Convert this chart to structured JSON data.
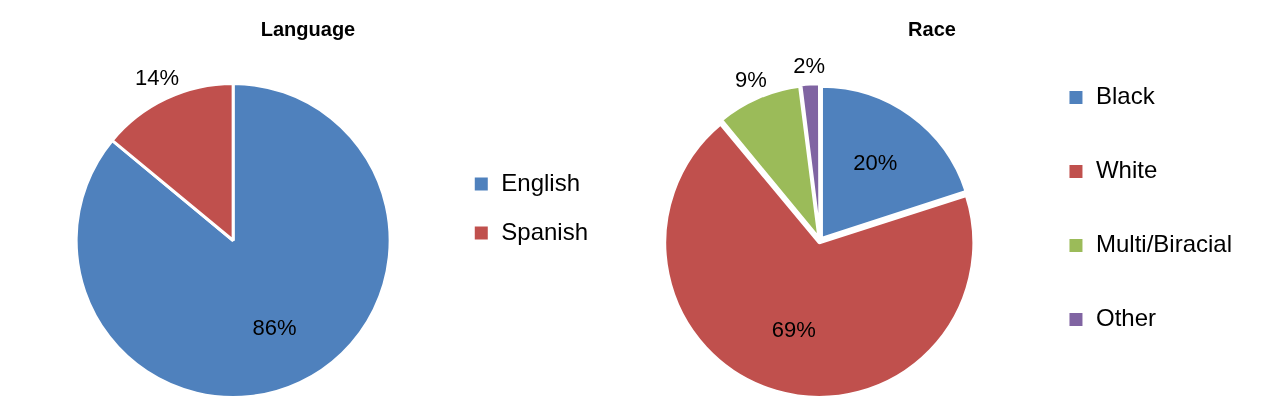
{
  "chart_data": [
    {
      "type": "pie",
      "title": "Language",
      "categories": [
        "English",
        "Spanish"
      ],
      "values": [
        86,
        14
      ],
      "colors": [
        "#4f81bd",
        "#c0504d"
      ],
      "value_labels": [
        "86%",
        "14%"
      ],
      "legend": "right"
    },
    {
      "type": "pie",
      "title": "Race",
      "categories": [
        "Black",
        "White",
        "Multi/Biracial",
        "Other"
      ],
      "values": [
        20,
        69,
        9,
        2
      ],
      "colors": [
        "#4f81bd",
        "#c0504d",
        "#9bbb59",
        "#8064a2"
      ],
      "value_labels": [
        "20%",
        "69%",
        "9%",
        "2%"
      ],
      "legend": "right"
    }
  ]
}
